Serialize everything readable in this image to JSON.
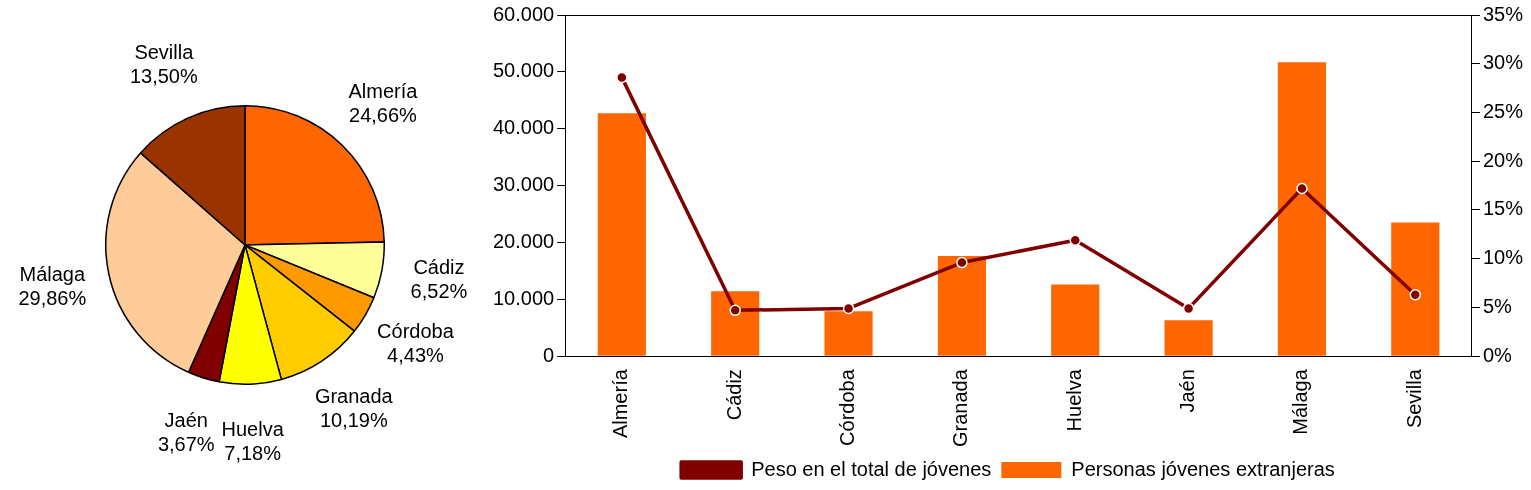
{
  "chart_data": [
    {
      "type": "pie",
      "categories": [
        "Almería",
        "Cádiz",
        "Córdoba",
        "Granada",
        "Huelva",
        "Jaén",
        "Málaga",
        "Sevilla"
      ],
      "values": [
        24.66,
        6.52,
        4.43,
        10.19,
        7.18,
        3.67,
        29.86,
        13.5
      ],
      "colors": [
        "#ff6600",
        "#ffff99",
        "#ff9900",
        "#ffcc00",
        "#ffff00",
        "#800000",
        "#ffcc99",
        "#993300"
      ],
      "value_labels": [
        "24,66%",
        "6,52%",
        "4,43%",
        "10,19%",
        "7,18%",
        "3,67%",
        "29,86%",
        "13,50%"
      ]
    },
    {
      "type": "bar",
      "categories": [
        "Almería",
        "Cádiz",
        "Córdoba",
        "Granada",
        "Huelva",
        "Jaén",
        "Málaga",
        "Sevilla"
      ],
      "series": [
        {
          "name": "Personas jóvenes extranjeras",
          "color": "#ff6600",
          "type": "bar",
          "values": [
            42700,
            11400,
            7900,
            17600,
            12600,
            6300,
            51700,
            23500
          ]
        },
        {
          "name": "Peso en el total de jóvenes",
          "color": "#800000",
          "type": "line",
          "axis": "y2",
          "values": [
            28.6,
            4.7,
            4.9,
            9.6,
            11.9,
            4.9,
            17.2,
            6.3
          ]
        }
      ],
      "ylim": [
        0,
        60000
      ],
      "yticks": [
        {
          "value": 0,
          "label": "0"
        },
        {
          "value": 10000,
          "label": "10.000"
        },
        {
          "value": 20000,
          "label": "20.000"
        },
        {
          "value": 30000,
          "label": "30.000"
        },
        {
          "value": 40000,
          "label": "40.000"
        },
        {
          "value": 50000,
          "label": "50.000"
        },
        {
          "value": 60000,
          "label": "60.000"
        }
      ],
      "y2lim": [
        0,
        35
      ],
      "y2ticks": [
        {
          "value": 0,
          "label": "0%"
        },
        {
          "value": 5,
          "label": "5%"
        },
        {
          "value": 10,
          "label": "10%"
        },
        {
          "value": 15,
          "label": "15%"
        },
        {
          "value": 20,
          "label": "20%"
        },
        {
          "value": 25,
          "label": "25%"
        },
        {
          "value": 30,
          "label": "30%"
        },
        {
          "value": 35,
          "label": "35%"
        }
      ],
      "legend": "bottom",
      "grid": false,
      "marker": "circle"
    }
  ]
}
